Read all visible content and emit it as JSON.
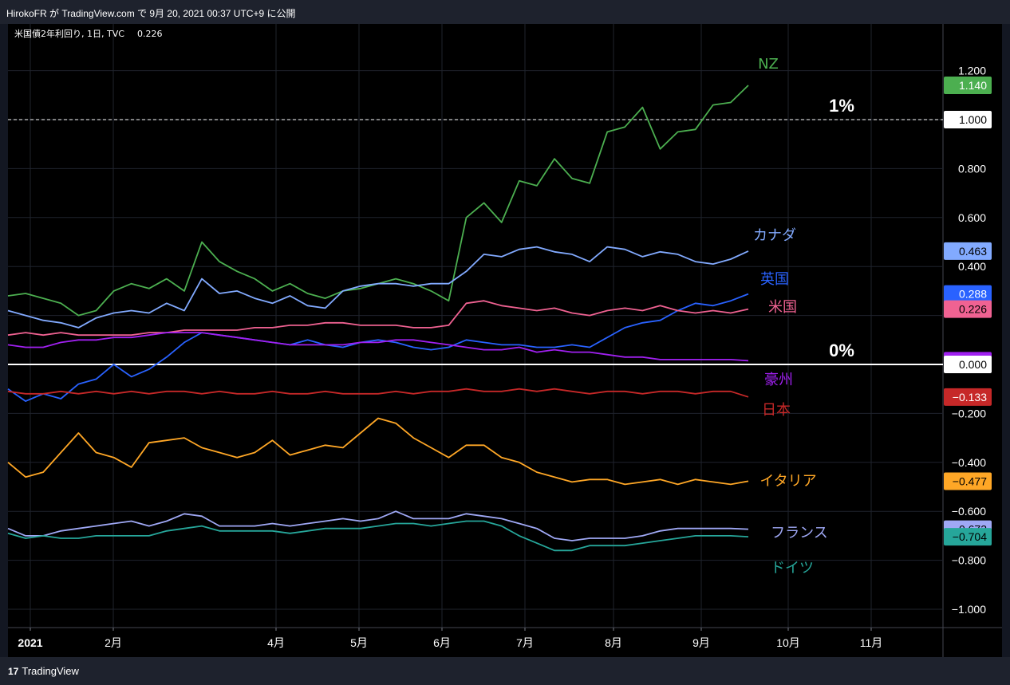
{
  "header": {
    "publish_line": "HirokoFR が TradingView.com で 9月 20, 2021 00:37 UTC+9 に公開"
  },
  "legend": {
    "symbol": "米国債2年利回り, 1日, TVC",
    "value": "0.226",
    "value_color": "#f23645"
  },
  "footer": {
    "logo_mark": "17",
    "logo_text": "TradingView"
  },
  "chart_data": {
    "type": "line",
    "ylim": [
      -1.1,
      1.3
    ],
    "y_ticks": [
      {
        "v": 1.2,
        "label": "1.200"
      },
      {
        "v": 0.8,
        "label": "0.800"
      },
      {
        "v": 0.6,
        "label": "0.600"
      },
      {
        "v": 0.4,
        "label": "0.400"
      },
      {
        "v": -0.2,
        "label": "−0.200"
      },
      {
        "v": -0.4,
        "label": "−0.400"
      },
      {
        "v": -0.6,
        "label": "−0.600"
      },
      {
        "v": -0.8,
        "label": "−0.800"
      },
      {
        "v": -1.0,
        "label": "−1.000"
      }
    ],
    "x_ticks": [
      "2021",
      "2月",
      "4月",
      "5月",
      "6月",
      "7月",
      "8月",
      "9月",
      "10月",
      "11月"
    ],
    "reference_lines": [
      {
        "value": 1.0,
        "label": "1%",
        "style": "dashed",
        "color": "#ffffff"
      },
      {
        "value": 0.0,
        "label": "0%",
        "style": "solid",
        "color": "#ffffff"
      }
    ],
    "reference_badges": [
      {
        "value": 1.0,
        "label": "1.000",
        "bg": "#ffffff",
        "fg": "#000000"
      },
      {
        "value": 0.0,
        "label": "0.000",
        "bg": "#ffffff",
        "fg": "#000000"
      }
    ],
    "series": [
      {
        "name": "NZ",
        "color": "#4caf50",
        "badge": "1.140",
        "values": [
          0.28,
          0.29,
          0.27,
          0.25,
          0.2,
          0.22,
          0.3,
          0.33,
          0.31,
          0.35,
          0.3,
          0.5,
          0.42,
          0.38,
          0.35,
          0.3,
          0.33,
          0.29,
          0.27,
          0.3,
          0.31,
          0.33,
          0.35,
          0.33,
          0.3,
          0.26,
          0.6,
          0.66,
          0.58,
          0.75,
          0.73,
          0.84,
          0.76,
          0.74,
          0.95,
          0.97,
          1.05,
          0.88,
          0.95,
          0.96,
          1.06,
          1.07,
          1.14
        ]
      },
      {
        "name": "カナダ",
        "color": "#82aaff",
        "badge": "0.463",
        "values": [
          0.22,
          0.2,
          0.18,
          0.17,
          0.15,
          0.19,
          0.21,
          0.22,
          0.21,
          0.25,
          0.22,
          0.35,
          0.29,
          0.3,
          0.27,
          0.25,
          0.28,
          0.24,
          0.23,
          0.3,
          0.32,
          0.33,
          0.33,
          0.32,
          0.33,
          0.33,
          0.38,
          0.45,
          0.44,
          0.47,
          0.48,
          0.46,
          0.45,
          0.42,
          0.48,
          0.47,
          0.44,
          0.46,
          0.45,
          0.42,
          0.41,
          0.43,
          0.463
        ]
      },
      {
        "name": "英国",
        "color": "#2962ff",
        "badge": "0.288",
        "values": [
          -0.1,
          -0.15,
          -0.12,
          -0.14,
          -0.08,
          -0.06,
          0.0,
          -0.05,
          -0.02,
          0.03,
          0.09,
          0.13,
          0.12,
          0.11,
          0.1,
          0.09,
          0.08,
          0.1,
          0.08,
          0.07,
          0.09,
          0.1,
          0.09,
          0.07,
          0.06,
          0.07,
          0.1,
          0.09,
          0.08,
          0.08,
          0.07,
          0.07,
          0.08,
          0.07,
          0.11,
          0.15,
          0.17,
          0.18,
          0.22,
          0.25,
          0.24,
          0.26,
          0.288
        ]
      },
      {
        "name": "米国",
        "color": "#f06292",
        "badge": "0.226",
        "values": [
          0.12,
          0.13,
          0.12,
          0.13,
          0.12,
          0.12,
          0.12,
          0.12,
          0.13,
          0.13,
          0.14,
          0.14,
          0.14,
          0.14,
          0.15,
          0.15,
          0.16,
          0.16,
          0.17,
          0.17,
          0.16,
          0.16,
          0.16,
          0.15,
          0.15,
          0.16,
          0.25,
          0.26,
          0.24,
          0.23,
          0.22,
          0.23,
          0.21,
          0.2,
          0.22,
          0.23,
          0.22,
          0.24,
          0.22,
          0.21,
          0.22,
          0.21,
          0.226
        ]
      },
      {
        "name": "豪州",
        "color": "#a020f0",
        "badge": "0.015",
        "values": [
          0.08,
          0.07,
          0.07,
          0.09,
          0.1,
          0.1,
          0.11,
          0.11,
          0.12,
          0.13,
          0.13,
          0.13,
          0.12,
          0.11,
          0.1,
          0.09,
          0.08,
          0.08,
          0.08,
          0.08,
          0.09,
          0.09,
          0.1,
          0.1,
          0.09,
          0.08,
          0.07,
          0.06,
          0.06,
          0.07,
          0.05,
          0.06,
          0.05,
          0.05,
          0.04,
          0.03,
          0.03,
          0.02,
          0.02,
          0.02,
          0.02,
          0.02,
          0.015
        ]
      },
      {
        "name": "日本",
        "color": "#c62828",
        "badge": "−0.133",
        "values": [
          -0.11,
          -0.12,
          -0.12,
          -0.11,
          -0.12,
          -0.11,
          -0.12,
          -0.11,
          -0.12,
          -0.11,
          -0.11,
          -0.12,
          -0.11,
          -0.12,
          -0.12,
          -0.11,
          -0.12,
          -0.12,
          -0.11,
          -0.12,
          -0.12,
          -0.12,
          -0.11,
          -0.12,
          -0.11,
          -0.11,
          -0.1,
          -0.11,
          -0.11,
          -0.1,
          -0.11,
          -0.1,
          -0.11,
          -0.12,
          -0.11,
          -0.11,
          -0.12,
          -0.11,
          -0.11,
          -0.12,
          -0.11,
          -0.11,
          -0.133
        ]
      },
      {
        "name": "イタリア",
        "color": "#ffa726",
        "badge": "−0.477",
        "values": [
          -0.4,
          -0.46,
          -0.44,
          -0.36,
          -0.28,
          -0.36,
          -0.38,
          -0.42,
          -0.32,
          -0.31,
          -0.3,
          -0.34,
          -0.36,
          -0.38,
          -0.36,
          -0.31,
          -0.37,
          -0.35,
          -0.33,
          -0.34,
          -0.28,
          -0.22,
          -0.24,
          -0.3,
          -0.34,
          -0.38,
          -0.33,
          -0.33,
          -0.38,
          -0.4,
          -0.44,
          -0.46,
          -0.48,
          -0.47,
          -0.47,
          -0.49,
          -0.48,
          -0.47,
          -0.49,
          -0.47,
          -0.48,
          -0.49,
          -0.477
        ]
      },
      {
        "name": "フランス",
        "color": "#9fa8f5",
        "badge": "−0.673",
        "values": [
          -0.67,
          -0.7,
          -0.7,
          -0.68,
          -0.67,
          -0.66,
          -0.65,
          -0.64,
          -0.66,
          -0.64,
          -0.61,
          -0.62,
          -0.66,
          -0.66,
          -0.66,
          -0.65,
          -0.66,
          -0.65,
          -0.64,
          -0.63,
          -0.64,
          -0.63,
          -0.6,
          -0.63,
          -0.63,
          -0.63,
          -0.61,
          -0.62,
          -0.63,
          -0.65,
          -0.67,
          -0.71,
          -0.72,
          -0.71,
          -0.71,
          -0.71,
          -0.7,
          -0.68,
          -0.67,
          -0.67,
          -0.67,
          -0.67,
          -0.673
        ]
      },
      {
        "name": "ドイツ",
        "color": "#26a69a",
        "badge": "−0.704",
        "values": [
          -0.69,
          -0.71,
          -0.7,
          -0.71,
          -0.71,
          -0.7,
          -0.7,
          -0.7,
          -0.7,
          -0.68,
          -0.67,
          -0.66,
          -0.68,
          -0.68,
          -0.68,
          -0.68,
          -0.69,
          -0.68,
          -0.67,
          -0.67,
          -0.67,
          -0.66,
          -0.65,
          -0.65,
          -0.66,
          -0.65,
          -0.64,
          -0.64,
          -0.66,
          -0.7,
          -0.73,
          -0.76,
          -0.76,
          -0.74,
          -0.74,
          -0.74,
          -0.73,
          -0.72,
          -0.71,
          -0.7,
          -0.7,
          -0.7,
          -0.704
        ]
      }
    ]
  }
}
